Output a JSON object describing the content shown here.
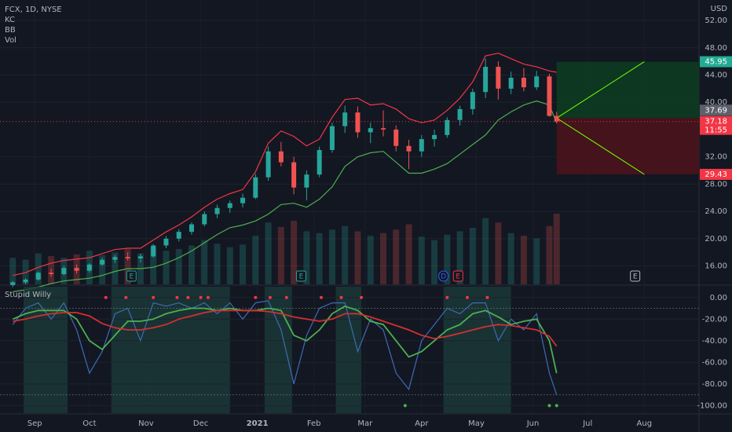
{
  "chart_data": [
    {
      "type": "candlestick",
      "title": "FCX, 1D, NYSE",
      "unit": "USD",
      "x": [
        19,
        26,
        33,
        40,
        47,
        54,
        61,
        68,
        75,
        82,
        89,
        96,
        103,
        110,
        117,
        124,
        131,
        138,
        145,
        152,
        159,
        166,
        173,
        180,
        187,
        194,
        201,
        208,
        215,
        222,
        229,
        236,
        243,
        250,
        257,
        264,
        271,
        278,
        285,
        292,
        299,
        306,
        313,
        317
      ],
      "open": [
        13.2,
        13.6,
        14.0,
        15.0,
        14.8,
        15.7,
        15.3,
        16.2,
        16.9,
        17.3,
        17.1,
        17.4,
        19.0,
        20.0,
        21.0,
        22.1,
        23.6,
        24.5,
        25.2,
        26.0,
        29.0,
        32.8,
        31.2,
        27.5,
        29.4,
        33.0,
        36.5,
        38.5,
        35.6,
        36.2,
        36.0,
        33.6,
        32.8,
        34.6,
        35.2,
        37.4,
        39.0,
        41.5,
        45.2,
        42.0,
        43.6,
        42.2,
        43.8,
        38.0
      ],
      "high": [
        13.8,
        14.2,
        15.2,
        15.6,
        16.0,
        16.2,
        16.4,
        17.2,
        17.6,
        18.0,
        17.8,
        19.2,
        20.4,
        21.4,
        22.4,
        24.0,
        25.0,
        25.6,
        26.6,
        29.5,
        33.5,
        34.2,
        32.0,
        30.0,
        33.5,
        37.0,
        39.5,
        39.4,
        37.0,
        38.8,
        36.6,
        34.5,
        35.2,
        36.0,
        37.8,
        39.5,
        42.0,
        46.4,
        46.0,
        44.5,
        45.0,
        44.6,
        44.2,
        38.6
      ],
      "low": [
        12.9,
        13.3,
        13.8,
        14.4,
        14.6,
        14.9,
        15.0,
        16.0,
        16.4,
        16.8,
        16.5,
        17.2,
        18.6,
        19.6,
        20.6,
        21.8,
        23.0,
        23.8,
        24.6,
        25.8,
        28.5,
        30.6,
        26.5,
        25.6,
        29.0,
        32.6,
        35.5,
        34.8,
        34.0,
        35.0,
        32.8,
        30.2,
        32.0,
        33.5,
        34.8,
        36.6,
        38.2,
        40.6,
        40.4,
        41.2,
        41.6,
        41.8,
        37.9,
        36.9
      ],
      "close": [
        13.6,
        14.0,
        15.0,
        14.8,
        15.7,
        15.3,
        16.2,
        16.9,
        17.3,
        17.1,
        17.4,
        19.0,
        20.0,
        21.0,
        22.1,
        23.6,
        24.5,
        25.2,
        26.0,
        29.0,
        32.8,
        31.2,
        27.5,
        29.4,
        33.0,
        36.5,
        38.5,
        35.6,
        36.2,
        36.0,
        33.6,
        32.8,
        34.6,
        35.2,
        37.4,
        39.0,
        41.5,
        45.2,
        42.0,
        43.6,
        42.2,
        43.8,
        38.0,
        37.18
      ],
      "up_color": "#26a69a",
      "down_color": "#ef5350",
      "series": [
        {
          "name": "KC",
          "color": "#f23645",
          "values": [
            14.6,
            15.0,
            15.8,
            16.4,
            16.8,
            17.0,
            17.2,
            17.8,
            18.4,
            18.6,
            18.6,
            19.8,
            21.0,
            22.0,
            23.2,
            24.6,
            25.8,
            26.6,
            27.2,
            29.8,
            34.0,
            35.8,
            35.0,
            33.6,
            34.6,
            37.8,
            40.4,
            40.6,
            39.6,
            39.8,
            39.0,
            37.6,
            37.0,
            37.4,
            38.8,
            40.6,
            43.0,
            46.8,
            47.2,
            46.4,
            45.6,
            45.2,
            44.6,
            44.4
          ]
        },
        {
          "name": "BB",
          "color": "#4caf50",
          "values": [
            12.2,
            12.5,
            12.9,
            13.4,
            13.8,
            14.0,
            14.2,
            14.6,
            15.2,
            15.6,
            15.6,
            15.8,
            16.4,
            17.2,
            18.2,
            19.4,
            20.6,
            21.6,
            22.0,
            22.6,
            23.6,
            25.0,
            25.2,
            24.6,
            25.8,
            27.6,
            30.6,
            32.0,
            32.6,
            32.8,
            31.2,
            29.6,
            29.6,
            30.2,
            31.0,
            32.4,
            33.8,
            35.2,
            37.4,
            38.6,
            39.6,
            40.2,
            39.6,
            37.0
          ]
        }
      ],
      "volume": {
        "name": "Vol",
        "values": [
          30,
          28,
          35,
          32,
          30,
          34,
          38,
          33,
          36,
          40,
          35,
          42,
          38,
          40,
          44,
          50,
          46,
          42,
          45,
          55,
          70,
          65,
          72,
          60,
          58,
          62,
          66,
          60,
          55,
          58,
          62,
          68,
          54,
          50,
          56,
          60,
          64,
          75,
          70,
          58,
          55,
          52,
          66,
          80
        ]
      },
      "xlim": [
        12,
        395
      ],
      "ylim": [
        13.3,
        55
      ],
      "yticks": [
        {
          "value": 16,
          "label": "16.00"
        },
        {
          "value": 20,
          "label": "20.00"
        },
        {
          "value": 24,
          "label": "24.00"
        },
        {
          "value": 28,
          "label": "28.00"
        },
        {
          "value": 32,
          "label": "32.00"
        },
        {
          "value": 40,
          "label": "40.00"
        },
        {
          "value": 44,
          "label": "44.00"
        },
        {
          "value": 48,
          "label": "48.00"
        },
        {
          "value": 52,
          "label": "52.00"
        }
      ],
      "xticks": [
        {
          "value": 31,
          "label": "Sep"
        },
        {
          "value": 61,
          "label": "Oct"
        },
        {
          "value": 92,
          "label": "Nov"
        },
        {
          "value": 122,
          "label": "Dec"
        },
        {
          "value": 153,
          "label": "2021"
        },
        {
          "value": 184,
          "label": "Feb"
        },
        {
          "value": 212,
          "label": "Mar"
        },
        {
          "value": 243,
          "label": "Apr"
        },
        {
          "value": 273,
          "label": "May"
        },
        {
          "value": 304,
          "label": "Jun"
        },
        {
          "value": 334,
          "label": "Jul"
        },
        {
          "value": 365,
          "label": "Aug"
        }
      ],
      "grid": true,
      "position": {
        "entry": 37.69,
        "target": 45.95,
        "stop": 29.43,
        "start": 317,
        "end": 395,
        "arrow_end": 365
      },
      "price_labels": [
        {
          "value": 45.95,
          "color": "#22ab94"
        },
        {
          "value": 37.69,
          "color": "#5d606b"
        },
        {
          "value": 37.18,
          "color": "#f23645",
          "sub": "11:55"
        },
        {
          "value": 29.43,
          "color": "#f23645"
        }
      ],
      "events": [
        {
          "x": 84,
          "label": "E",
          "color": "#26a69a"
        },
        {
          "x": 177,
          "label": "E",
          "color": "#26a69a"
        },
        {
          "x": 255,
          "label": "D",
          "color": "#2962ff"
        },
        {
          "x": 263,
          "label": "E",
          "color": "#f23645"
        },
        {
          "x": 360,
          "label": "E",
          "color": "#b2b5be"
        }
      ]
    },
    {
      "type": "line",
      "title": "Stupid Willy",
      "x": [
        19,
        26,
        33,
        40,
        47,
        54,
        61,
        68,
        75,
        82,
        89,
        96,
        103,
        110,
        117,
        124,
        131,
        138,
        145,
        152,
        159,
        166,
        173,
        180,
        187,
        194,
        201,
        208,
        215,
        222,
        229,
        236,
        243,
        250,
        257,
        264,
        271,
        278,
        285,
        292,
        299,
        306,
        313,
        317
      ],
      "series": [
        {
          "color": "#3d6bb3",
          "values": [
            -25,
            -10,
            -5,
            -20,
            -5,
            -30,
            -70,
            -50,
            -15,
            -10,
            -40,
            -5,
            -8,
            -5,
            -10,
            -5,
            -15,
            -5,
            -20,
            -5,
            -3,
            -30,
            -80,
            -35,
            -10,
            -5,
            -5,
            -50,
            -20,
            -30,
            -70,
            -85,
            -40,
            -25,
            -10,
            -15,
            -5,
            -5,
            -40,
            -20,
            -30,
            -15,
            -70,
            -90
          ]
        },
        {
          "color": "#4caf50",
          "values": [
            -20,
            -15,
            -12,
            -12,
            -12,
            -20,
            -40,
            -48,
            -35,
            -22,
            -22,
            -20,
            -15,
            -12,
            -10,
            -10,
            -12,
            -10,
            -12,
            -12,
            -10,
            -12,
            -35,
            -40,
            -30,
            -15,
            -8,
            -12,
            -22,
            -25,
            -40,
            -55,
            -50,
            -40,
            -30,
            -25,
            -15,
            -12,
            -18,
            -25,
            -22,
            -20,
            -40,
            -70
          ]
        },
        {
          "color": "#d32f2f",
          "values": [
            -22,
            -20,
            -17,
            -15,
            -14,
            -14,
            -17,
            -24,
            -28,
            -30,
            -30,
            -28,
            -25,
            -20,
            -17,
            -14,
            -12,
            -12,
            -12,
            -12,
            -13,
            -15,
            -18,
            -20,
            -22,
            -20,
            -15,
            -15,
            -18,
            -22,
            -26,
            -30,
            -35,
            -38,
            -36,
            -33,
            -30,
            -27,
            -25,
            -26,
            -28,
            -30,
            -36,
            -45
          ]
        }
      ],
      "xlim": [
        12,
        395
      ],
      "ylim": [
        -107,
        10
      ],
      "yticks": [
        {
          "value": 0,
          "label": "0.00"
        },
        {
          "value": -20,
          "label": "-20.00"
        },
        {
          "value": -40,
          "label": "-40.00"
        },
        {
          "value": -60,
          "label": "-60.00"
        },
        {
          "value": -80,
          "label": "-80.00"
        },
        {
          "value": -100,
          "label": "-100.00"
        }
      ],
      "levels": [
        -10,
        -90
      ],
      "zones": [
        [
          25,
          49
        ],
        [
          73,
          138
        ],
        [
          157,
          172
        ],
        [
          196,
          210
        ],
        [
          255,
          292
        ]
      ],
      "zone_color": "#1b3b3a",
      "overbought_level": 0,
      "overbought_dots": [
        70,
        81,
        96,
        109,
        115,
        122,
        126,
        152,
        160,
        169,
        188,
        199,
        210,
        257,
        268,
        279
      ],
      "oversold_level": -100,
      "oversold_dots": [
        234,
        313,
        317
      ]
    }
  ]
}
